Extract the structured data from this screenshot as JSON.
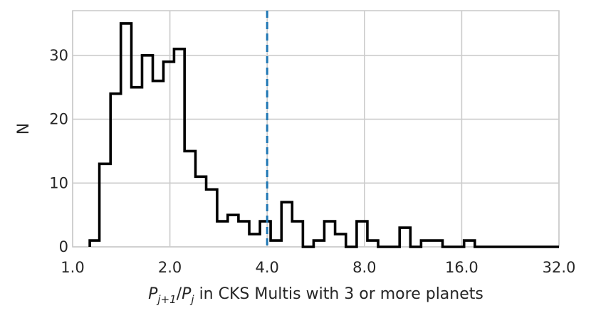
{
  "chart_data": {
    "type": "histogram",
    "xlabel_parts": {
      "base_p1": "P",
      "sub1": "j+1",
      "slash": "/",
      "base_p2": "P",
      "sub2": "j",
      "rest": " in CKS Multis with 3 or more planets"
    },
    "ylabel": "N",
    "xscale": "log2",
    "xlim": [
      1.0,
      32.0
    ],
    "ylim": [
      0,
      37
    ],
    "xticks": [
      1.0,
      2.0,
      4.0,
      8.0,
      16.0,
      32.0
    ],
    "xtick_labels": [
      "1.0",
      "2.0",
      "4.0",
      "8.0",
      "16.0",
      "32.0"
    ],
    "yticks": [
      0,
      10,
      20,
      30
    ],
    "ytick_labels": [
      "0",
      "10",
      "20",
      "30"
    ],
    "grid": true,
    "bin_edges": [
      1.13,
      1.21,
      1.31,
      1.41,
      1.52,
      1.64,
      1.77,
      1.91,
      2.06,
      2.22,
      2.4,
      2.59,
      2.8,
      3.02,
      3.26,
      3.52,
      3.8,
      4.1,
      4.43,
      4.78,
      5.16,
      5.57,
      6.01,
      6.49,
      7.01,
      7.57,
      8.17,
      8.82,
      9.52,
      10.28,
      11.1,
      11.98,
      12.93,
      13.96,
      15.07,
      16.27,
      17.57,
      18.97,
      20.48
    ],
    "counts": [
      1,
      13,
      24,
      35,
      25,
      30,
      26,
      29,
      31,
      15,
      11,
      9,
      4,
      5,
      4,
      2,
      4,
      1,
      7,
      4,
      0,
      1,
      4,
      2,
      0,
      4,
      1,
      0,
      0,
      3,
      0,
      1,
      1,
      0,
      0,
      1,
      0,
      0
    ],
    "vline": {
      "x": 4.0,
      "style": "dashed",
      "color": "#1f77b4"
    }
  }
}
